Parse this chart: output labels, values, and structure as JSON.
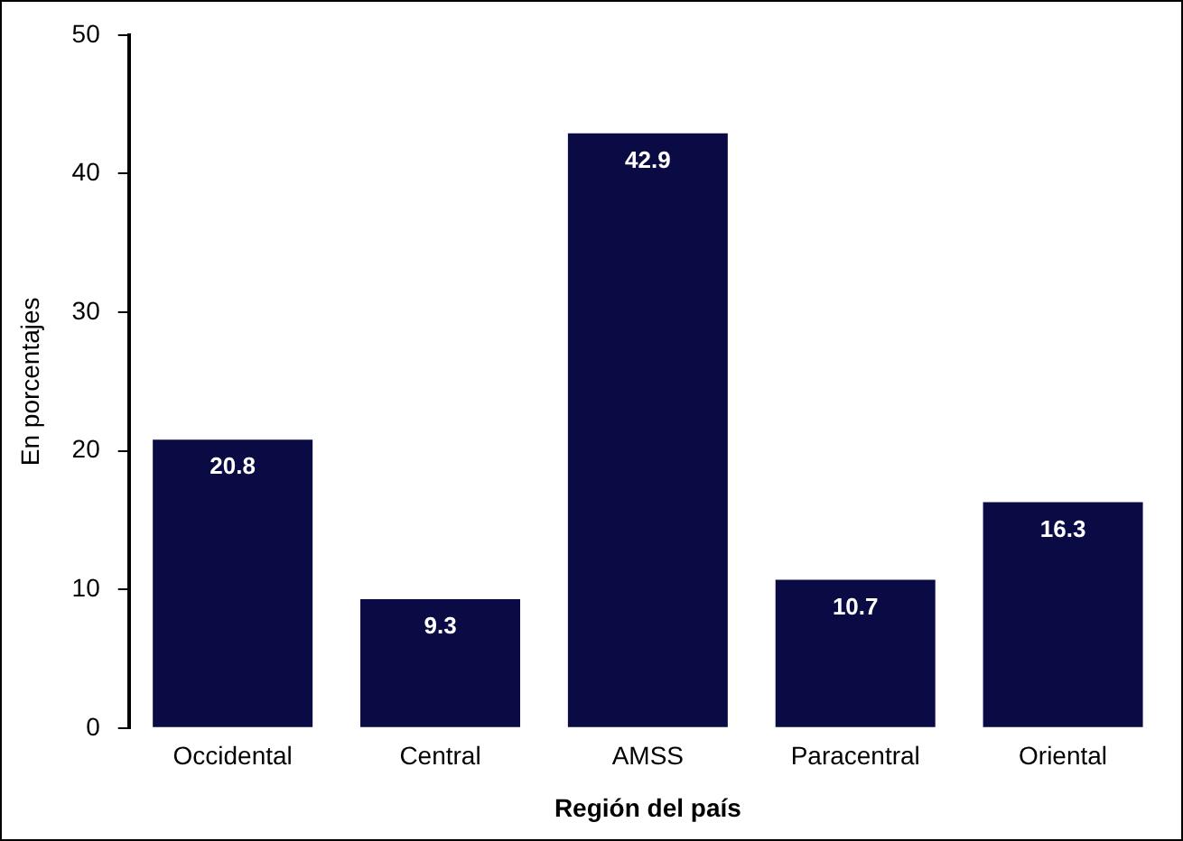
{
  "chart_data": {
    "type": "bar",
    "xlabel": "Región del país",
    "ylabel": "En porcentajes",
    "categories": [
      "Occidental",
      "Central",
      "AMSS",
      "Paracentral",
      "Oriental"
    ],
    "values": [
      20.8,
      9.3,
      42.9,
      10.7,
      16.3
    ],
    "color": "#0a0a45",
    "ylim": [
      0,
      50
    ],
    "yticks": [
      0,
      10,
      20,
      30,
      40,
      50
    ],
    "grid": false,
    "legend": false,
    "data_labels": true
  }
}
